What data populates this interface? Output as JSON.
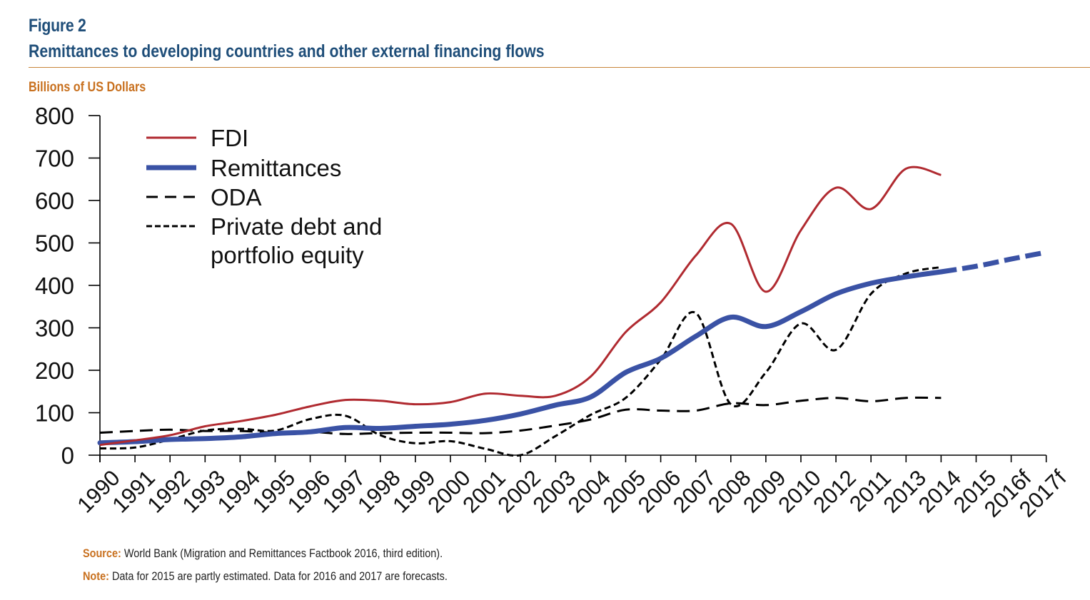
{
  "figure": {
    "label": "Figure 2",
    "title": "Remittances to developing countries and other external financing flows",
    "units": "Billions of US Dollars"
  },
  "footer": {
    "source_key": "Source:",
    "source_text": " World Bank (Migration and Remittances Factbook 2016, third edition).",
    "note_key": "Note:",
    "note_text": " Data for 2015 are partly estimated. Data for 2016 and 2017 are forecasts."
  },
  "colors": {
    "header_blue": "#1f4e79",
    "accent_orange": "#c8701e",
    "fdi_red": "#b02a30",
    "remittances_blue": "#3a52a5",
    "black": "#000000"
  },
  "chart_data": {
    "type": "line",
    "categories": [
      "1990",
      "1991",
      "1992",
      "1993",
      "1994",
      "1995",
      "1996",
      "1997",
      "1998",
      "1999",
      "2000",
      "2001",
      "2002",
      "2003",
      "2004",
      "2005",
      "2006",
      "2007",
      "2008",
      "2009",
      "2010",
      "2012",
      "2011",
      "2013",
      "2014",
      "2015",
      "2016f",
      "2017f"
    ],
    "yticks": [
      0,
      100,
      200,
      300,
      400,
      500,
      600,
      700,
      800
    ],
    "ylim": [
      0,
      800
    ],
    "grid": false,
    "legend_position": "top-left",
    "series": [
      {
        "name": "FDI",
        "color": "#b02a30",
        "style": "solid",
        "values": [
          24,
          35,
          47,
          68,
          80,
          95,
          115,
          130,
          128,
          120,
          125,
          145,
          140,
          140,
          185,
          290,
          360,
          470,
          545,
          385,
          530,
          630,
          580,
          675,
          660,
          null,
          null,
          null
        ]
      },
      {
        "name": "Remittances",
        "color": "#3a52a5",
        "style": "thick",
        "forecast_from_index": 24,
        "values": [
          29,
          32,
          37,
          39,
          43,
          51,
          55,
          65,
          63,
          68,
          73,
          82,
          97,
          118,
          137,
          195,
          228,
          280,
          325,
          303,
          338,
          380,
          405,
          420,
          432,
          445,
          462,
          478
        ]
      },
      {
        "name": "ODA",
        "color": "#000000",
        "style": "dashed",
        "values": [
          53,
          57,
          60,
          57,
          57,
          53,
          55,
          50,
          52,
          53,
          53,
          52,
          58,
          70,
          84,
          107,
          105,
          105,
          122,
          118,
          128,
          135,
          127,
          135,
          135,
          null,
          null,
          null
        ]
      },
      {
        "name": "Private debt and portfolio equity",
        "legend_lines": [
          "Private debt and",
          "portfolio equity"
        ],
        "color": "#000000",
        "style": "dotted",
        "values": [
          16,
          18,
          37,
          58,
          62,
          58,
          85,
          93,
          47,
          28,
          33,
          15,
          0,
          45,
          95,
          135,
          225,
          335,
          120,
          195,
          310,
          248,
          380,
          428,
          443,
          null,
          null,
          null
        ]
      }
    ]
  }
}
